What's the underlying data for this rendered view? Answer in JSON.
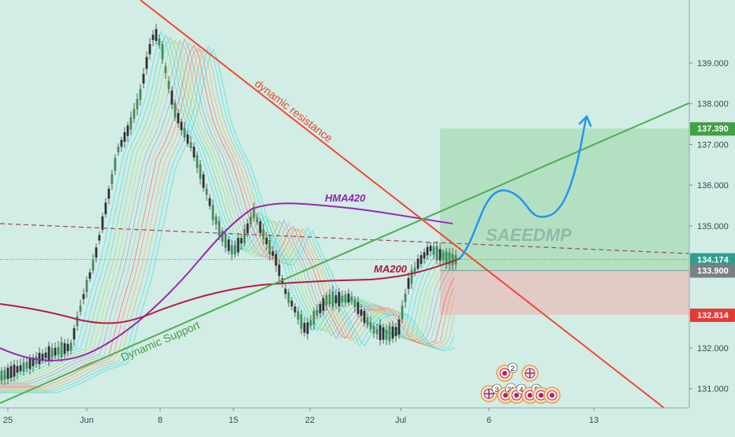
{
  "chart_data": {
    "type": "line",
    "xaxis": {
      "tick_labels": [
        "25",
        "Jun",
        "8",
        "15",
        "22",
        "Jul",
        "6",
        "13"
      ]
    },
    "yaxis": {
      "tick_labels": [
        "139.000",
        "138.000",
        "137.000",
        "136.000",
        "135.000",
        "132.000",
        "131.000"
      ],
      "ylim": [
        130.6,
        139.9
      ]
    },
    "price_labels": [
      {
        "text": "137.390",
        "value": 137.39,
        "color": "#43a047"
      },
      {
        "text": "134.174",
        "value": 134.174,
        "color": "#2e9e8e"
      },
      {
        "text": "133.900",
        "value": 133.9,
        "color": "#7a7f86"
      },
      {
        "text": "132.814",
        "value": 132.814,
        "color": "#e53935"
      }
    ],
    "annotations": {
      "resistance": "dynamic resistance",
      "support": "Dynamic Support",
      "hma": "HMA420",
      "ma": "MA200",
      "watermark": "SAEEDMP"
    },
    "event_markers": [
      "2",
      "3",
      "23",
      "4",
      "5"
    ],
    "position": {
      "target": 137.39,
      "entry": 133.9,
      "stop": 132.814
    },
    "colors": {
      "background": "#d2ece6",
      "resistance_line": "#f2492f",
      "support_line": "#4caf50",
      "hma_line": "#9c27b0",
      "ma_line": "#b71c45",
      "projection": "#2196f3",
      "profit_zone": "#a9dcb5",
      "loss_zone": "#e5c4c0"
    }
  }
}
